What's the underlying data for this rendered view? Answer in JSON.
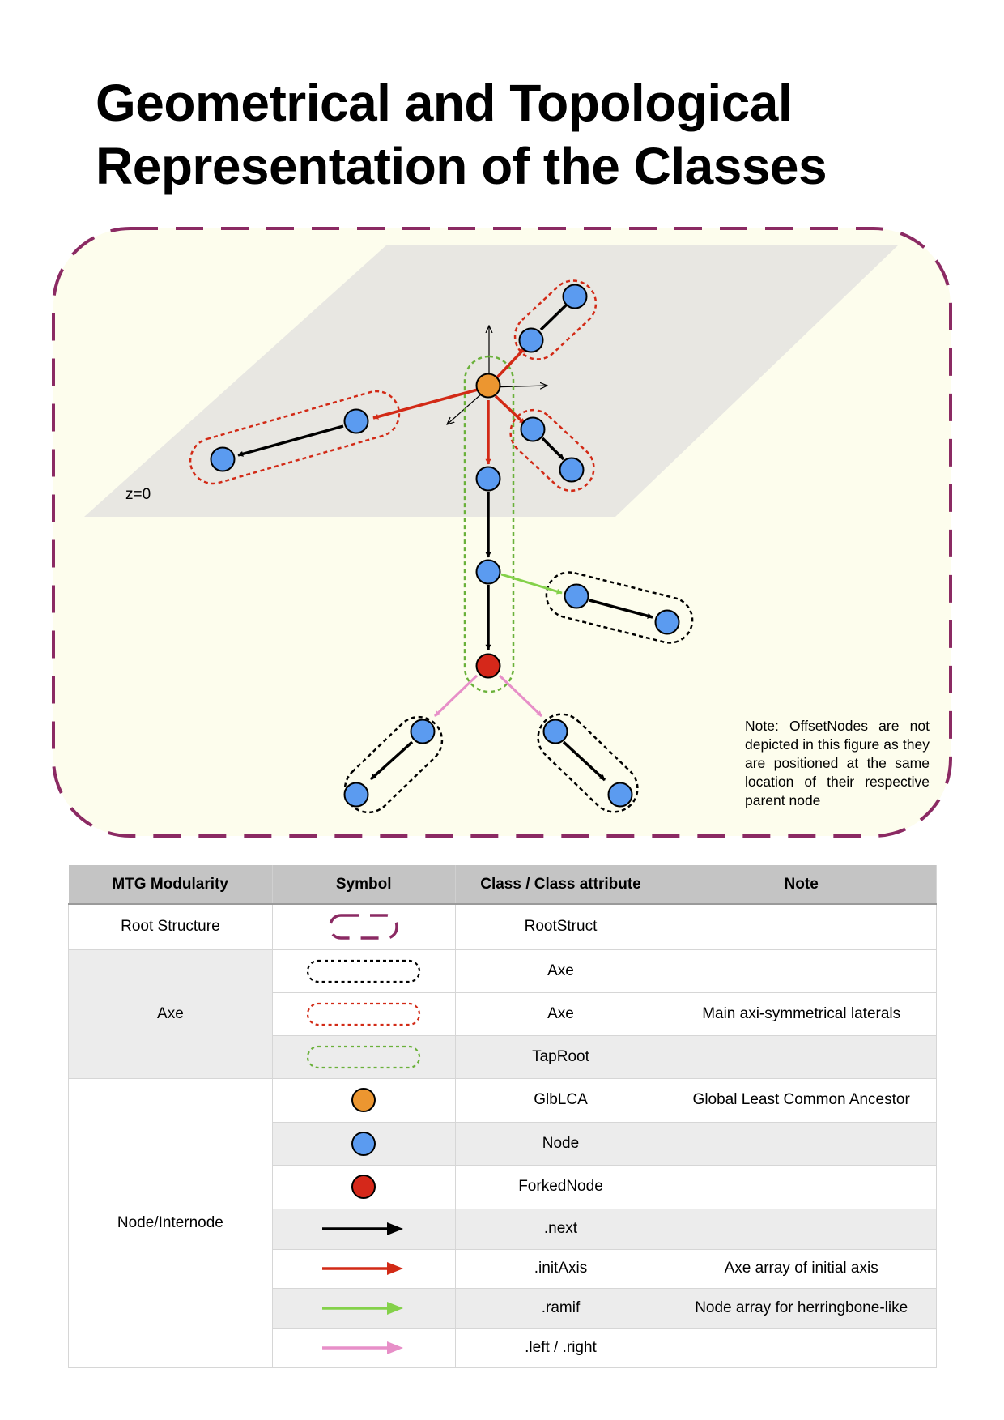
{
  "title": {
    "line1": "Geometrical and Topological",
    "line2": "Representation of the Classes"
  },
  "diagram": {
    "plane_label": "z=0",
    "note": "Note: OffsetNodes are not depicted in this figure as they are positioned at the same location of their respective parent node"
  },
  "colors": {
    "root_struct": "#8b2a63",
    "axe_black": "#000000",
    "axe_red": "#d22a16",
    "taproot_green": "#6ab13a",
    "glblca": "#ec9630",
    "node": "#5b9bf0",
    "forked_node": "#d5281a",
    "next": "#000000",
    "init_axis": "#d22a16",
    "ramif": "#84d14a",
    "left_right": "#e78fc8",
    "background": "#fdfded",
    "plane": "#e8e7e2"
  },
  "legend": {
    "headers": [
      "MTG Modularity",
      "Symbol",
      "Class / Class attribute",
      "Note"
    ],
    "groups": {
      "root": "Root Structure",
      "axe": "Axe",
      "node": "Node/Internode"
    },
    "rows": [
      {
        "symbol": "rootstruct-dashed-icon",
        "class": "RootStruct",
        "note": ""
      },
      {
        "symbol": "axe-black-dotted-icon",
        "class": "Axe",
        "note": ""
      },
      {
        "symbol": "axe-red-dotted-icon",
        "class": "Axe",
        "note": "Main axi-symmetrical laterals"
      },
      {
        "symbol": "taproot-green-dotted-icon",
        "class": "TapRoot",
        "note": ""
      },
      {
        "symbol": "orange-circle-icon",
        "class": "GlbLCA",
        "note": "Global Least Common Ancestor"
      },
      {
        "symbol": "blue-circle-icon",
        "class": "Node",
        "note": ""
      },
      {
        "symbol": "red-circle-icon",
        "class": "ForkedNode",
        "note": ""
      },
      {
        "symbol": "black-arrow-icon",
        "class": ".next",
        "note": ""
      },
      {
        "symbol": "red-arrow-icon",
        "class": ".initAxis",
        "note": "Axe array of initial axis"
      },
      {
        "symbol": "green-arrow-icon",
        "class": ".ramif",
        "note": "Node array for herringbone-like"
      },
      {
        "symbol": "pink-arrow-icon",
        "class": ".left / .right",
        "note": ""
      }
    ]
  }
}
